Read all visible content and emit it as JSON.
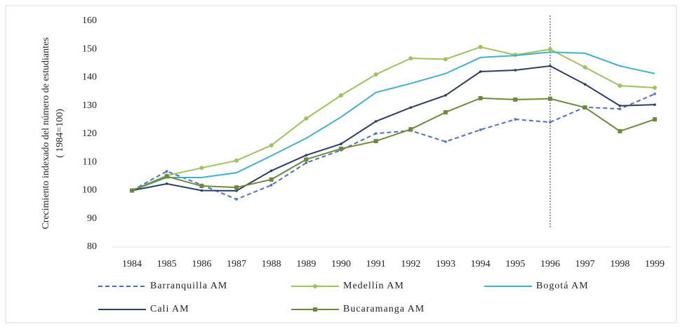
{
  "chart_data": {
    "type": "line",
    "ylabel": [
      "Crecimiento indexado del número de estudiantes",
      "( 1984=100)"
    ],
    "categories": [
      "1984",
      "1985",
      "1986",
      "1987",
      "1988",
      "1989",
      "1990",
      "1991",
      "1992",
      "1993",
      "1994",
      "1995",
      "1996",
      "1997",
      "1998",
      "1999"
    ],
    "ylim": [
      80,
      160
    ],
    "yticks": [
      80,
      90,
      100,
      110,
      120,
      130,
      140,
      150,
      160
    ],
    "vertical_line": "1996",
    "series": [
      {
        "name": "Barranquilla AM",
        "color": "#4a72c4",
        "dash": true,
        "marker": "dot",
        "values": [
          100,
          106.8,
          102,
          96.9,
          101.9,
          109.8,
          114.3,
          120.2,
          121.2,
          117.3,
          121.5,
          125.2,
          124.2,
          129.5,
          128.9,
          134.2
        ]
      },
      {
        "name": "Medellín AM",
        "color": "#9dc45c",
        "dash": false,
        "marker": "circle",
        "values": [
          100,
          105.3,
          108,
          110.6,
          116,
          125.5,
          133.7,
          141.1,
          146.8,
          146.5,
          150.8,
          148,
          150,
          143.6,
          137.1,
          136.4
        ]
      },
      {
        "name": "Bogotá AM",
        "color": "#3fb2c9",
        "dash": false,
        "marker": "none",
        "values": [
          100,
          104.6,
          104.6,
          106.3,
          112.3,
          118.5,
          126,
          134.7,
          137.9,
          141.4,
          147.1,
          147.8,
          149,
          148.6,
          144.1,
          141.4
        ]
      },
      {
        "name": "Cali AM",
        "color": "#2c3e66",
        "dash": false,
        "marker": "dot",
        "values": [
          100,
          102.4,
          100,
          99.9,
          107,
          112.5,
          116.5,
          124.5,
          129.4,
          133.7,
          142.1,
          142.6,
          144.1,
          137.6,
          130,
          130.4
        ]
      },
      {
        "name": "Bucaramanga AM",
        "color": "#6d8a3a",
        "dash": false,
        "marker": "square",
        "values": [
          100,
          105,
          101.6,
          101.1,
          103.9,
          111,
          114.8,
          117.5,
          121.7,
          127.7,
          132.7,
          132.2,
          132.5,
          129.4,
          121,
          125.2
        ]
      }
    ]
  }
}
